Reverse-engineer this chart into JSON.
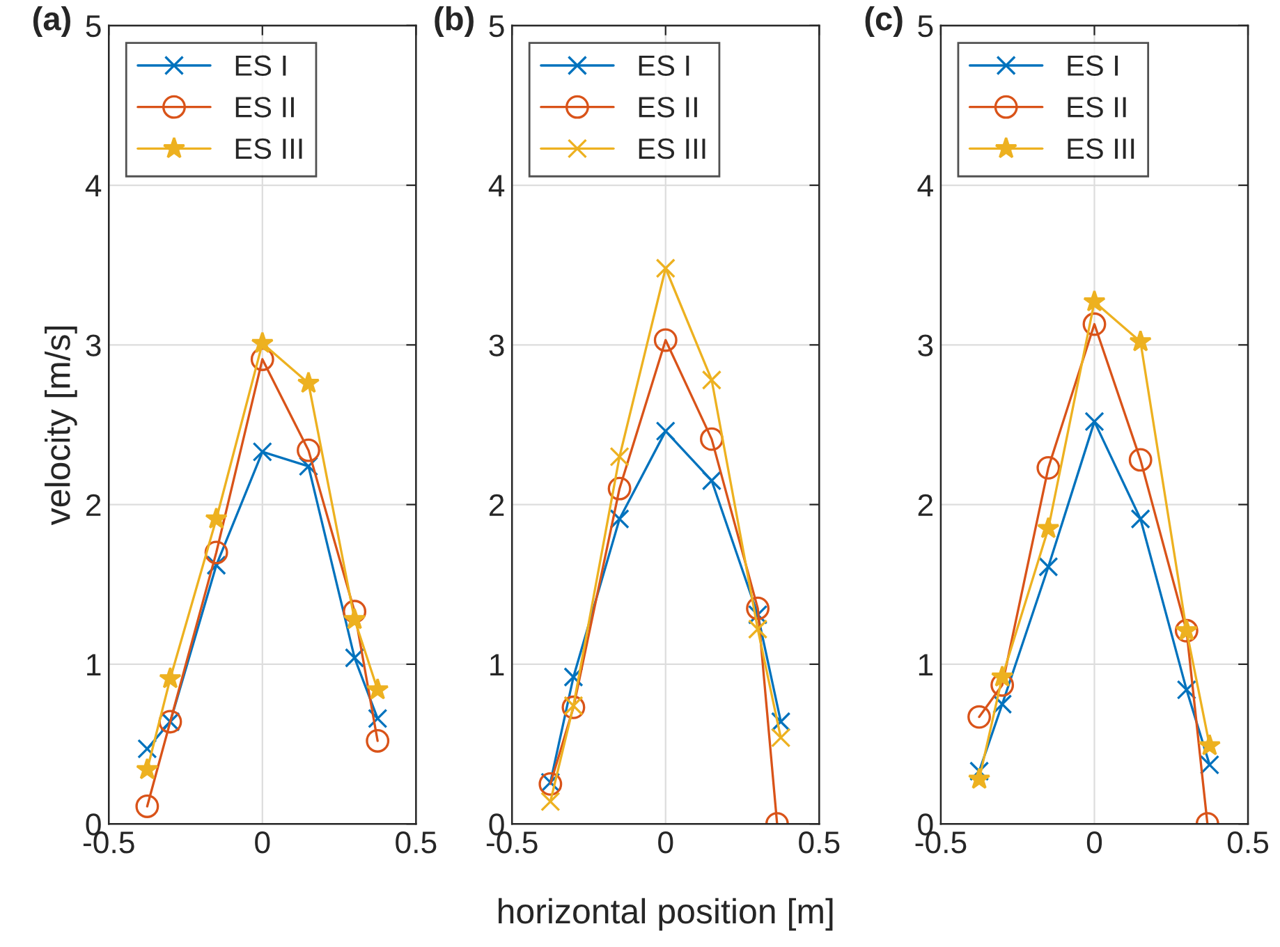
{
  "chart_data": [
    {
      "type": "line",
      "title": "(a)",
      "ylabel": "velocity [m/s]",
      "x": [
        -0.375,
        -0.3,
        -0.15,
        0,
        0.15,
        0.3,
        0.375
      ],
      "xlim": [
        -0.5,
        0.5
      ],
      "xticks": [
        -0.5,
        0,
        0.5
      ],
      "ylim": [
        0,
        5
      ],
      "yticks": [
        0,
        1,
        2,
        3,
        4,
        5
      ],
      "grid": true,
      "legend": "top left",
      "series": [
        {
          "name": "ES I",
          "color": "#0072bd",
          "marker": "cross",
          "values": [
            0.47,
            0.64,
            1.62,
            2.33,
            2.24,
            1.04,
            0.66
          ]
        },
        {
          "name": "ES II",
          "color": "#d95319",
          "marker": "circle",
          "values": [
            0.11,
            0.64,
            1.7,
            2.91,
            2.34,
            1.33,
            0.52
          ]
        },
        {
          "name": "ES III",
          "color": "#edb120",
          "marker": "star",
          "values": [
            0.34,
            0.91,
            1.91,
            3.01,
            2.76,
            1.28,
            0.84
          ]
        }
      ]
    },
    {
      "type": "line",
      "title": "(b)",
      "xlabel": "horizontal position [m]",
      "x": [
        -0.375,
        -0.3,
        -0.15,
        0,
        0.15,
        0.3,
        0.375
      ],
      "xlim": [
        -0.5,
        0.5
      ],
      "xticks": [
        -0.5,
        0,
        0.5
      ],
      "ylim": [
        0,
        5
      ],
      "yticks": [
        0,
        1,
        2,
        3,
        4,
        5
      ],
      "grid": true,
      "legend": "top left",
      "series": [
        {
          "name": "ES I",
          "color": "#0072bd",
          "marker": "cross",
          "values": [
            0.26,
            0.92,
            1.91,
            2.46,
            2.15,
            1.31,
            0.64
          ]
        },
        {
          "name": "ES II",
          "color": "#d95319",
          "marker": "circle",
          "x": [
            -0.375,
            -0.3,
            -0.15,
            0,
            0.15,
            0.3,
            0.363
          ],
          "values": [
            0.25,
            0.73,
            2.1,
            3.03,
            2.41,
            1.35,
            0
          ]
        },
        {
          "name": "ES III",
          "color": "#edb120",
          "marker": "cross",
          "values": [
            0.14,
            0.74,
            2.3,
            3.48,
            2.78,
            1.22,
            0.54
          ]
        }
      ]
    },
    {
      "type": "line",
      "title": "(c)",
      "x": [
        -0.375,
        -0.3,
        -0.15,
        0,
        0.15,
        0.3,
        0.375
      ],
      "xlim": [
        -0.5,
        0.5
      ],
      "xticks": [
        -0.5,
        0,
        0.5
      ],
      "ylim": [
        0,
        5
      ],
      "yticks": [
        0,
        1,
        2,
        3,
        4,
        5
      ],
      "grid": true,
      "legend": "top left",
      "series": [
        {
          "name": "ES I",
          "color": "#0072bd",
          "marker": "cross",
          "values": [
            0.33,
            0.75,
            1.61,
            2.52,
            1.91,
            0.84,
            0.37
          ]
        },
        {
          "name": "ES II",
          "color": "#d95319",
          "marker": "circle",
          "x": [
            -0.375,
            -0.3,
            -0.15,
            0,
            0.15,
            0.3,
            0.368
          ],
          "values": [
            0.67,
            0.87,
            2.23,
            3.13,
            2.28,
            1.21,
            0
          ]
        },
        {
          "name": "ES III",
          "color": "#edb120",
          "marker": "star",
          "values": [
            0.28,
            0.92,
            1.85,
            3.27,
            3.02,
            1.21,
            0.49
          ]
        }
      ]
    }
  ]
}
